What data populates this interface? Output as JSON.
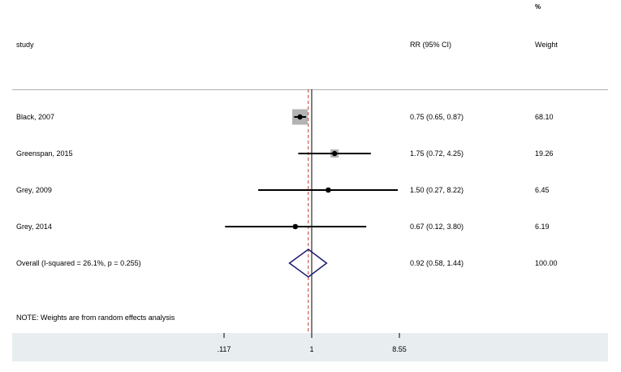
{
  "headers": {
    "pct": "%",
    "study": "study",
    "effect": "RR (95% CI)",
    "weight": "Weight"
  },
  "note": "NOTE: Weights are from random effects analysis",
  "chart_data": {
    "type": "forest",
    "xscale": "log",
    "xlim": [
      0.117,
      8.55
    ],
    "ticks": [
      ".117",
      "1",
      "8.55"
    ],
    "null_line": 1,
    "overall_line": 0.92,
    "studies": [
      {
        "label": "Black, 2007",
        "rr": 0.75,
        "lo": 0.65,
        "hi": 0.87,
        "ci_text": "0.75 (0.65, 0.87)",
        "weight": 68.1,
        "weight_text": "68.10"
      },
      {
        "label": "Greenspan, 2015",
        "rr": 1.75,
        "lo": 0.72,
        "hi": 4.25,
        "ci_text": "1.75 (0.72, 4.25)",
        "weight": 19.26,
        "weight_text": "19.26"
      },
      {
        "label": "Grey, 2009",
        "rr": 1.5,
        "lo": 0.27,
        "hi": 8.22,
        "ci_text": "1.50 (0.27, 8.22)",
        "weight": 6.45,
        "weight_text": "6.45"
      },
      {
        "label": "Grey, 2014",
        "rr": 0.67,
        "lo": 0.12,
        "hi": 3.8,
        "ci_text": "0.67 (0.12, 3.80)",
        "weight": 6.19,
        "weight_text": "6.19"
      }
    ],
    "overall": {
      "label": "Overall  (I-squared = 26.1%, p = 0.255)",
      "rr": 0.92,
      "lo": 0.58,
      "hi": 1.44,
      "ci_text": "0.92 (0.58, 1.44)",
      "weight_text": "100.00"
    },
    "colors": {
      "marker": "#000000",
      "weight_box": "#b3b3b3",
      "diamond": "#1a1a6e",
      "null_line": "#000000",
      "overall_line": "#c0392b",
      "separator": "#b0b0b0"
    }
  }
}
